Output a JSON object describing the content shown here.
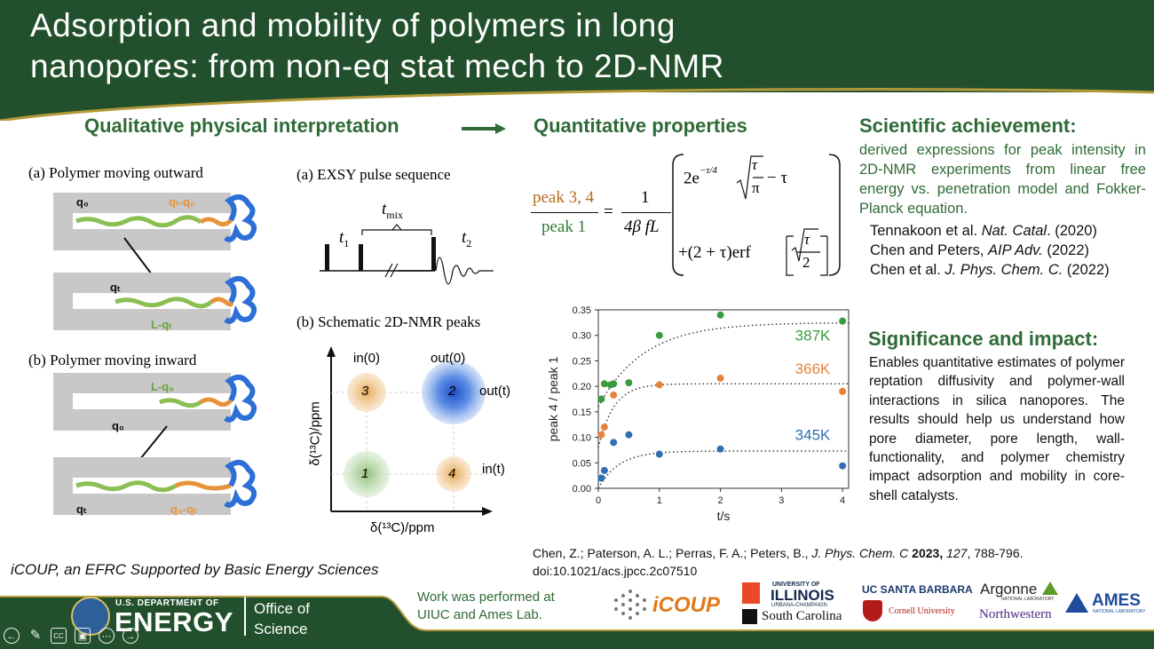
{
  "title": "Adsorption and mobility of polymers in long nanopores: from non-eq stat mech to 2D-NMR",
  "title_line1": "Adsorption and mobility of polymers in long",
  "title_line2": "nanopores: from non-eq stat mech to 2D-NMR",
  "qualitative_heading": "Qualitative physical interpretation",
  "quantitative_heading": "Quantitative properties",
  "left_figure": {
    "panel_a_title": "(a) Polymer moving outward",
    "panel_b_title": "(b) Polymer moving inward",
    "labels": {
      "q0": "q₀",
      "qt_q0": "qₜ-q₀",
      "qt": "qₜ",
      "L_qt": "L-qₜ",
      "L_q0": "L-q₀",
      "q0_qt": "q₀-qₜ"
    }
  },
  "exsy": {
    "title": "(a) EXSY pulse sequence",
    "tmix": "t",
    "tmix_sub": "mix",
    "t1": "t",
    "t1_sub": "1",
    "t2": "t",
    "t2_sub": "2"
  },
  "nmr2d": {
    "title": "(b) Schematic 2D-NMR peaks",
    "in0": "in(0)",
    "out0": "out(0)",
    "outt": "out(t)",
    "int": "in(t)",
    "peaks": [
      "3",
      "2",
      "1",
      "4"
    ],
    "xlabel": "δ(¹³C)/ppm",
    "ylabel": "δ(¹³C)/ppm"
  },
  "equation": {
    "num": "peak 3, 4",
    "den": "peak 1",
    "eq": "=",
    "one": "1",
    "pref_den": "4β fL",
    "term1_a": "2e",
    "term1_exp": "−τ/4",
    "term1_tau": "τ",
    "term1_pi": "π",
    "term1_minus": "− τ",
    "term2_a": "+(2 + τ)erf",
    "term2_tau": "τ",
    "term2_two": "2"
  },
  "chart_data": {
    "type": "scatter",
    "xlabel": "t/s",
    "ylabel": "peak 4 / peak 1",
    "xlim": [
      0,
      4.1
    ],
    "ylim": [
      0,
      0.35
    ],
    "xticks": [
      0,
      1,
      2,
      3,
      4
    ],
    "yticks": [
      0.0,
      0.05,
      0.1,
      0.15,
      0.2,
      0.25,
      0.3,
      0.35
    ],
    "ytick_labels": [
      "0.00",
      "0.05",
      "0.10",
      "0.15",
      "0.20",
      "0.25",
      "0.30",
      "0.35"
    ],
    "series": [
      {
        "name": "387K",
        "color": "#3a9a3f",
        "x": [
          0.05,
          0.1,
          0.2,
          0.25,
          0.5,
          1,
          2,
          4
        ],
        "y": [
          0.175,
          0.205,
          0.203,
          0.205,
          0.207,
          0.3,
          0.34,
          0.328
        ],
        "fit_plateau": 0.325,
        "fit_rate": 1.35,
        "fit_y0": 0.16
      },
      {
        "name": "366K",
        "color": "#e8823a",
        "x": [
          0.05,
          0.1,
          0.25,
          1,
          2,
          4
        ],
        "y": [
          0.105,
          0.12,
          0.183,
          0.203,
          0.216,
          0.19
        ],
        "fit_plateau": 0.205,
        "fit_rate": 4.0,
        "fit_y0": 0.08
      },
      {
        "name": "345K",
        "color": "#2f6fb2",
        "x": [
          0.05,
          0.1,
          0.25,
          0.5,
          1,
          2,
          4
        ],
        "y": [
          0.02,
          0.035,
          0.09,
          0.105,
          0.067,
          0.077,
          0.044
        ],
        "fit_plateau": 0.073,
        "fit_rate": 3.0,
        "fit_y0": 0.0
      }
    ]
  },
  "achievement": {
    "heading": "Scientific achievement:",
    "text": "derived expressions for peak intensity in 2D-NMR experiments from linear free energy vs. penetration model and Fokker-Planck equation.",
    "refs": [
      {
        "authors": "Tennakoon et al. ",
        "journal": "Nat. Catal",
        "rest": ". (2020)"
      },
      {
        "authors": "Chen and Peters, ",
        "journal": "AIP Adv.",
        "rest": " (2022)"
      },
      {
        "authors": "Chen et al. ",
        "journal": "J. Phys. Chem. C.",
        "rest": " (2022)"
      }
    ]
  },
  "significance": {
    "heading": "Significance and impact:",
    "text": "Enables quantitative estimates of polymer reptation diffusivity and polymer-wall interactions in silica nanopores.  The results should help us understand how pore diameter, pore length, wall-functionality, and polymer chemistry impact adsorption and mobility in core-shell catalysts."
  },
  "citation": {
    "authors": "Chen, Z.;  Paterson, A. L.;  Perras, F. A.; Peters, B., ",
    "journal": "J. Phys. Chem. C",
    "year": " 2023, ",
    "volume": "127",
    "pages": ", 788-796.",
    "doi": "doi:10.1021/acs.jpcc.2c07510"
  },
  "icoup_note": "iCOUP, an EFRC Supported by Basic Energy Sciences",
  "work_note_line1": "Work was performed at",
  "work_note_line2": "UIUC and Ames Lab.",
  "doe": {
    "dept": "U.S. DEPARTMENT OF",
    "energy": "ENERGY",
    "office1": "Office of",
    "office2": "Science"
  },
  "logos": {
    "icoup": "iCOUP",
    "illinois_top": "UNIVERSITY OF",
    "illinois": "ILLINOIS",
    "illinois_sub": "URBANA-CHAMPAIGN",
    "south_carolina": "South Carolina",
    "ucsb": "UC SANTA BARBARA",
    "cornell": "Cornell University",
    "argonne": "Argonne",
    "argonne_sub": "NATIONAL LABORATORY",
    "northwestern": "Northwestern",
    "ames": "AMES",
    "ames_sub": "NATIONAL LABORATORY"
  },
  "colors": {
    "header_green": "#22502c",
    "accent_green": "#2f6b36",
    "gold": "#b49a3a"
  }
}
